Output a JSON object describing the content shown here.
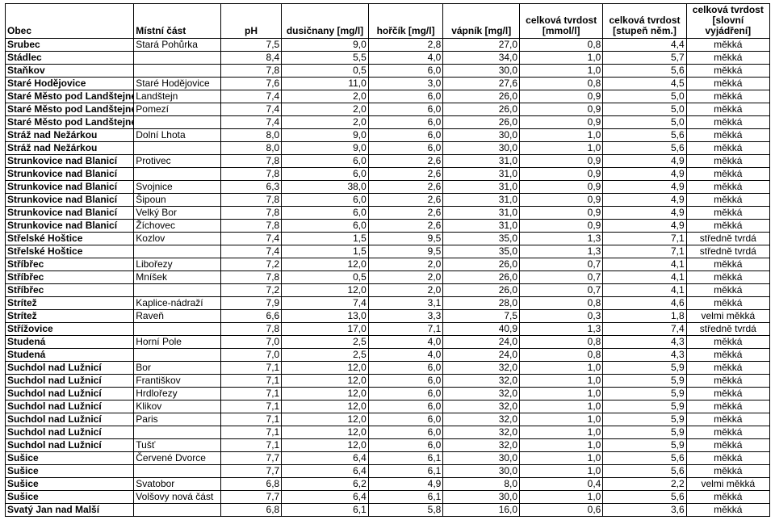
{
  "columns": [
    {
      "key": "obec",
      "label": "Obec",
      "class": "c-obec",
      "type": "text"
    },
    {
      "key": "cast",
      "label": "Místní část",
      "class": "c-cast",
      "type": "text"
    },
    {
      "key": "ph",
      "label": "pH",
      "class": "c-ph",
      "type": "num",
      "decimals": 1
    },
    {
      "key": "dus",
      "label": "dusičnany [mg/l]",
      "class": "c-dus",
      "type": "num",
      "decimals": 1
    },
    {
      "key": "hor",
      "label": "hořčík [mg/l]",
      "class": "c-hor",
      "type": "num",
      "decimals": 1
    },
    {
      "key": "vap",
      "label": "vápník [mg/l]",
      "class": "c-vap",
      "type": "num",
      "decimals": 1
    },
    {
      "key": "mm",
      "label": "celková tvrdost [mmol/l]",
      "class": "c-mm",
      "type": "num",
      "decimals": 1
    },
    {
      "key": "nem",
      "label": "celková tvrdost [stupeň něm.]",
      "class": "c-nem",
      "type": "num",
      "decimals": 1
    },
    {
      "key": "vy",
      "label": "celková tvrdost [slovní vyjádření]",
      "class": "c-vy",
      "type": "text"
    }
  ],
  "rows": [
    {
      "obec": "Srubec",
      "cast": "Stará Pohůrka",
      "ph": 7.5,
      "dus": 9.0,
      "hor": 2.8,
      "vap": 27.0,
      "mm": 0.8,
      "nem": 4.4,
      "vy": "měkká"
    },
    {
      "obec": "Stádlec",
      "cast": "",
      "ph": 8.4,
      "dus": 5.5,
      "hor": 4.0,
      "vap": 34.0,
      "mm": 1.0,
      "nem": 5.7,
      "vy": "měkká"
    },
    {
      "obec": "Staňkov",
      "cast": "",
      "ph": 7.8,
      "dus": 0.5,
      "hor": 6.0,
      "vap": 30.0,
      "mm": 1.0,
      "nem": 5.6,
      "vy": "měkká"
    },
    {
      "obec": "Staré Hodějovice",
      "cast": "Staré Hodějovice",
      "ph": 7.6,
      "dus": 11.0,
      "hor": 3.0,
      "vap": 27.6,
      "mm": 0.8,
      "nem": 4.5,
      "vy": "měkká"
    },
    {
      "obec": "Staré Město pod Landštejnem",
      "cast": "Landštejn",
      "ph": 7.4,
      "dus": 2.0,
      "hor": 6.0,
      "vap": 26.0,
      "mm": 0.9,
      "nem": 5.0,
      "vy": "měkká"
    },
    {
      "obec": "Staré Město pod Landštejnem",
      "cast": "Pomezí",
      "ph": 7.4,
      "dus": 2.0,
      "hor": 6.0,
      "vap": 26.0,
      "mm": 0.9,
      "nem": 5.0,
      "vy": "měkká"
    },
    {
      "obec": "Staré Město pod Landštejnem",
      "cast": "",
      "ph": 7.4,
      "dus": 2.0,
      "hor": 6.0,
      "vap": 26.0,
      "mm": 0.9,
      "nem": 5.0,
      "vy": "měkká"
    },
    {
      "obec": "Stráž nad Nežárkou",
      "cast": "Dolní Lhota",
      "ph": 8.0,
      "dus": 9.0,
      "hor": 6.0,
      "vap": 30.0,
      "mm": 1.0,
      "nem": 5.6,
      "vy": "měkká"
    },
    {
      "obec": "Stráž nad Nežárkou",
      "cast": "",
      "ph": 8.0,
      "dus": 9.0,
      "hor": 6.0,
      "vap": 30.0,
      "mm": 1.0,
      "nem": 5.6,
      "vy": "měkká"
    },
    {
      "obec": "Strunkovice nad Blanicí",
      "cast": "Protivec",
      "ph": 7.8,
      "dus": 6.0,
      "hor": 2.6,
      "vap": 31.0,
      "mm": 0.9,
      "nem": 4.9,
      "vy": "měkká"
    },
    {
      "obec": "Strunkovice nad Blanicí",
      "cast": "",
      "ph": 7.8,
      "dus": 6.0,
      "hor": 2.6,
      "vap": 31.0,
      "mm": 0.9,
      "nem": 4.9,
      "vy": "měkká"
    },
    {
      "obec": "Strunkovice nad Blanicí",
      "cast": "Svojnice",
      "ph": 6.3,
      "dus": 38.0,
      "hor": 2.6,
      "vap": 31.0,
      "mm": 0.9,
      "nem": 4.9,
      "vy": "měkká"
    },
    {
      "obec": "Strunkovice nad Blanicí",
      "cast": "Šipoun",
      "ph": 7.8,
      "dus": 6.0,
      "hor": 2.6,
      "vap": 31.0,
      "mm": 0.9,
      "nem": 4.9,
      "vy": "měkká"
    },
    {
      "obec": "Strunkovice nad Blanicí",
      "cast": "Velký Bor",
      "ph": 7.8,
      "dus": 6.0,
      "hor": 2.6,
      "vap": 31.0,
      "mm": 0.9,
      "nem": 4.9,
      "vy": "měkká"
    },
    {
      "obec": "Strunkovice nad Blanicí",
      "cast": "Žíchovec",
      "ph": 7.8,
      "dus": 6.0,
      "hor": 2.6,
      "vap": 31.0,
      "mm": 0.9,
      "nem": 4.9,
      "vy": "měkká"
    },
    {
      "obec": "Střelské Hoštice",
      "cast": "Kozlov",
      "ph": 7.4,
      "dus": 1.5,
      "hor": 9.5,
      "vap": 35.0,
      "mm": 1.3,
      "nem": 7.1,
      "vy": "středně tvrdá"
    },
    {
      "obec": "Střelské Hoštice",
      "cast": "",
      "ph": 7.4,
      "dus": 1.5,
      "hor": 9.5,
      "vap": 35.0,
      "mm": 1.3,
      "nem": 7.1,
      "vy": "středně tvrdá"
    },
    {
      "obec": "Stříbřec",
      "cast": "Libořezy",
      "ph": 7.2,
      "dus": 12.0,
      "hor": 2.0,
      "vap": 26.0,
      "mm": 0.7,
      "nem": 4.1,
      "vy": "měkká"
    },
    {
      "obec": "Stříbřec",
      "cast": "Mníšek",
      "ph": 7.8,
      "dus": 0.5,
      "hor": 2.0,
      "vap": 26.0,
      "mm": 0.7,
      "nem": 4.1,
      "vy": "měkká"
    },
    {
      "obec": "Stříbřec",
      "cast": "",
      "ph": 7.2,
      "dus": 12.0,
      "hor": 2.0,
      "vap": 26.0,
      "mm": 0.7,
      "nem": 4.1,
      "vy": "měkká"
    },
    {
      "obec": "Strítež",
      "cast": "Kaplice-nádraží",
      "ph": 7.9,
      "dus": 7.4,
      "hor": 3.1,
      "vap": 28.0,
      "mm": 0.8,
      "nem": 4.6,
      "vy": "měkká"
    },
    {
      "obec": "Strítež",
      "cast": "Raveň",
      "ph": 6.6,
      "dus": 13.0,
      "hor": 3.3,
      "vap": 7.5,
      "mm": 0.3,
      "nem": 1.8,
      "vy": "velmi měkká"
    },
    {
      "obec": "Střížovice",
      "cast": "",
      "ph": 7.8,
      "dus": 17.0,
      "hor": 7.1,
      "vap": 40.9,
      "mm": 1.3,
      "nem": 7.4,
      "vy": "středně tvrdá"
    },
    {
      "obec": "Studená",
      "cast": "Horní Pole",
      "ph": 7.0,
      "dus": 2.5,
      "hor": 4.0,
      "vap": 24.0,
      "mm": 0.8,
      "nem": 4.3,
      "vy": "měkká"
    },
    {
      "obec": "Studená",
      "cast": "",
      "ph": 7.0,
      "dus": 2.5,
      "hor": 4.0,
      "vap": 24.0,
      "mm": 0.8,
      "nem": 4.3,
      "vy": "měkká"
    },
    {
      "obec": "Suchdol nad Lužnicí",
      "cast": "Bor",
      "ph": 7.1,
      "dus": 12.0,
      "hor": 6.0,
      "vap": 32.0,
      "mm": 1.0,
      "nem": 5.9,
      "vy": "měkká"
    },
    {
      "obec": "Suchdol nad Lužnicí",
      "cast": "Františkov",
      "ph": 7.1,
      "dus": 12.0,
      "hor": 6.0,
      "vap": 32.0,
      "mm": 1.0,
      "nem": 5.9,
      "vy": "měkká"
    },
    {
      "obec": "Suchdol nad Lužnicí",
      "cast": "Hrdlořezy",
      "ph": 7.1,
      "dus": 12.0,
      "hor": 6.0,
      "vap": 32.0,
      "mm": 1.0,
      "nem": 5.9,
      "vy": "měkká"
    },
    {
      "obec": "Suchdol nad Lužnicí",
      "cast": "Klikov",
      "ph": 7.1,
      "dus": 12.0,
      "hor": 6.0,
      "vap": 32.0,
      "mm": 1.0,
      "nem": 5.9,
      "vy": "měkká"
    },
    {
      "obec": "Suchdol nad Lužnicí",
      "cast": "Paris",
      "ph": 7.1,
      "dus": 12.0,
      "hor": 6.0,
      "vap": 32.0,
      "mm": 1.0,
      "nem": 5.9,
      "vy": "měkká"
    },
    {
      "obec": "Suchdol nad Lužnicí",
      "cast": "",
      "ph": 7.1,
      "dus": 12.0,
      "hor": 6.0,
      "vap": 32.0,
      "mm": 1.0,
      "nem": 5.9,
      "vy": "měkká"
    },
    {
      "obec": "Suchdol nad Lužnicí",
      "cast": "Tušť",
      "ph": 7.1,
      "dus": 12.0,
      "hor": 6.0,
      "vap": 32.0,
      "mm": 1.0,
      "nem": 5.9,
      "vy": "měkká"
    },
    {
      "obec": "Sušice",
      "cast": "Červené Dvorce",
      "ph": 7.7,
      "dus": 6.4,
      "hor": 6.1,
      "vap": 30.0,
      "mm": 1.0,
      "nem": 5.6,
      "vy": "měkká"
    },
    {
      "obec": "Sušice",
      "cast": "",
      "ph": 7.7,
      "dus": 6.4,
      "hor": 6.1,
      "vap": 30.0,
      "mm": 1.0,
      "nem": 5.6,
      "vy": "měkká"
    },
    {
      "obec": "Sušice",
      "cast": "Svatobor",
      "ph": 6.8,
      "dus": 6.2,
      "hor": 4.9,
      "vap": 8.0,
      "mm": 0.4,
      "nem": 2.2,
      "vy": "velmi měkká"
    },
    {
      "obec": "Sušice",
      "cast": "Volšovy nová část",
      "ph": 7.7,
      "dus": 6.4,
      "hor": 6.1,
      "vap": 30.0,
      "mm": 1.0,
      "nem": 5.6,
      "vy": "měkká"
    },
    {
      "obec": "Svatý Jan nad Malší",
      "cast": "",
      "ph": 6.8,
      "dus": 6.1,
      "hor": 5.8,
      "vap": 16.0,
      "mm": 0.6,
      "nem": 3.6,
      "vy": "měkká"
    }
  ]
}
